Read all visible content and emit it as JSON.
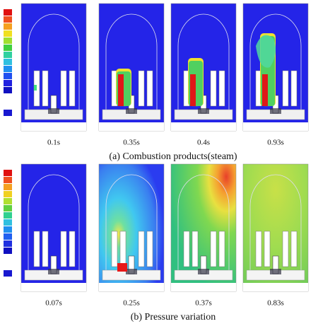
{
  "figure": {
    "panels": [
      {
        "caption": "(a) Combustion products(steam)",
        "frames": [
          {
            "label": "0.1s"
          },
          {
            "label": "0.35s"
          },
          {
            "label": "0.4s"
          },
          {
            "label": "0.93s"
          }
        ]
      },
      {
        "caption": "(b) Pressure variation",
        "frames": [
          {
            "label": "0.07s"
          },
          {
            "label": "0.25s"
          },
          {
            "label": "0.37s"
          },
          {
            "label": "0.83s"
          }
        ]
      }
    ]
  }
}
